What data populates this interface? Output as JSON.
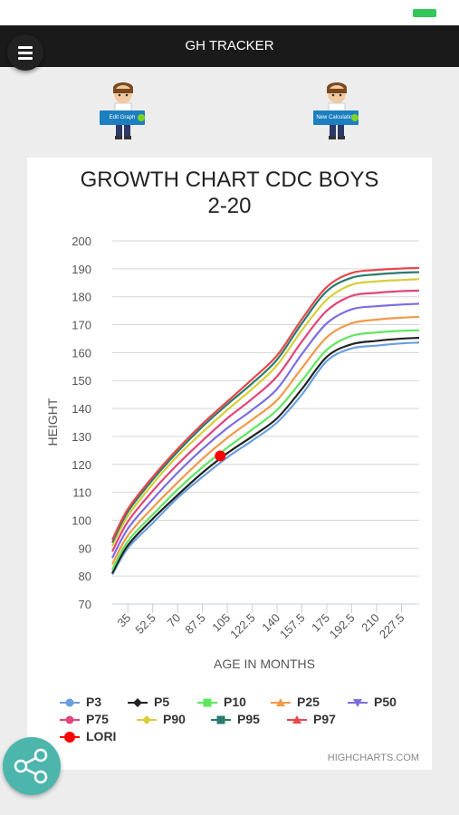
{
  "app": {
    "title": "GH TRACKER"
  },
  "buttons": {
    "edit_graph": "Edit Graph",
    "new_calculation": "New Calculation"
  },
  "credits": "HIGHCHARTS.COM",
  "chart_data": {
    "type": "line",
    "title_line1": "GROWTH CHART CDC BOYS",
    "title_line2": "2-20",
    "xlabel": "AGE IN MONTHS",
    "ylabel": "HEIGHT",
    "ylim": [
      70,
      200
    ],
    "yticks": [
      70,
      80,
      90,
      100,
      110,
      120,
      130,
      140,
      150,
      160,
      170,
      180,
      190,
      200
    ],
    "xlim": [
      24,
      240
    ],
    "xticks": [
      35,
      52.5,
      70,
      87.5,
      105,
      122.5,
      140,
      157.5,
      175,
      192.5,
      210,
      227.5
    ],
    "grid": true,
    "legend_position": "bottom",
    "x": [
      24,
      35,
      52.5,
      70,
      87.5,
      105,
      122.5,
      140,
      157.5,
      175,
      192.5,
      210,
      227.5,
      240
    ],
    "series": [
      {
        "name": "P3",
        "color": "#6a9fe0",
        "values": [
          80.5,
          90,
          99,
          108,
          115.5,
          122.5,
          128.5,
          135,
          145,
          157,
          161.5,
          162.5,
          163.3,
          163.6
        ]
      },
      {
        "name": "P5",
        "color": "#222222",
        "values": [
          81,
          91,
          100.5,
          109,
          117,
          124,
          130,
          136.5,
          147,
          158.5,
          163,
          164.2,
          165,
          165.3
        ]
      },
      {
        "name": "P10",
        "color": "#5ee65e",
        "values": [
          82.3,
          92.5,
          102,
          111,
          119,
          126,
          132.5,
          139.5,
          150,
          161,
          166,
          167.2,
          167.8,
          168
        ]
      },
      {
        "name": "P25",
        "color": "#f2994a",
        "values": [
          84.2,
          94.5,
          104.5,
          113.5,
          122,
          129.5,
          136,
          143,
          154.5,
          165.5,
          170.5,
          171.8,
          172.5,
          172.8
        ]
      },
      {
        "name": "P50",
        "color": "#7b6fe0",
        "values": [
          86.5,
          97,
          107.5,
          117,
          125.5,
          133,
          139.5,
          147,
          159.5,
          170.5,
          175.5,
          176.6,
          177.2,
          177.5
        ]
      },
      {
        "name": "P75",
        "color": "#e0457b",
        "values": [
          88.8,
          99.5,
          110.5,
          120,
          128.5,
          136.5,
          143.5,
          151.5,
          164,
          175,
          180.3,
          181.4,
          182,
          182.2
        ]
      },
      {
        "name": "P90",
        "color": "#d6cf3a",
        "values": [
          90.8,
          101.5,
          113,
          123,
          131.5,
          139.5,
          147,
          155.5,
          168,
          179,
          184.3,
          185.5,
          186,
          186.3
        ]
      },
      {
        "name": "P95",
        "color": "#2a7a6e",
        "values": [
          92,
          103,
          114.5,
          124.5,
          133.5,
          141.5,
          149,
          157.5,
          170.5,
          182,
          186.8,
          188,
          188.6,
          188.8
        ]
      },
      {
        "name": "P97",
        "color": "#e8474a",
        "values": [
          93,
          104,
          115.5,
          125.5,
          134.5,
          142.5,
          150.5,
          159,
          172,
          183.5,
          188.5,
          189.6,
          190.1,
          190.3
        ]
      }
    ],
    "point": {
      "name": "LORI",
      "color": "#ff0000",
      "x": 100,
      "y": 123
    }
  }
}
